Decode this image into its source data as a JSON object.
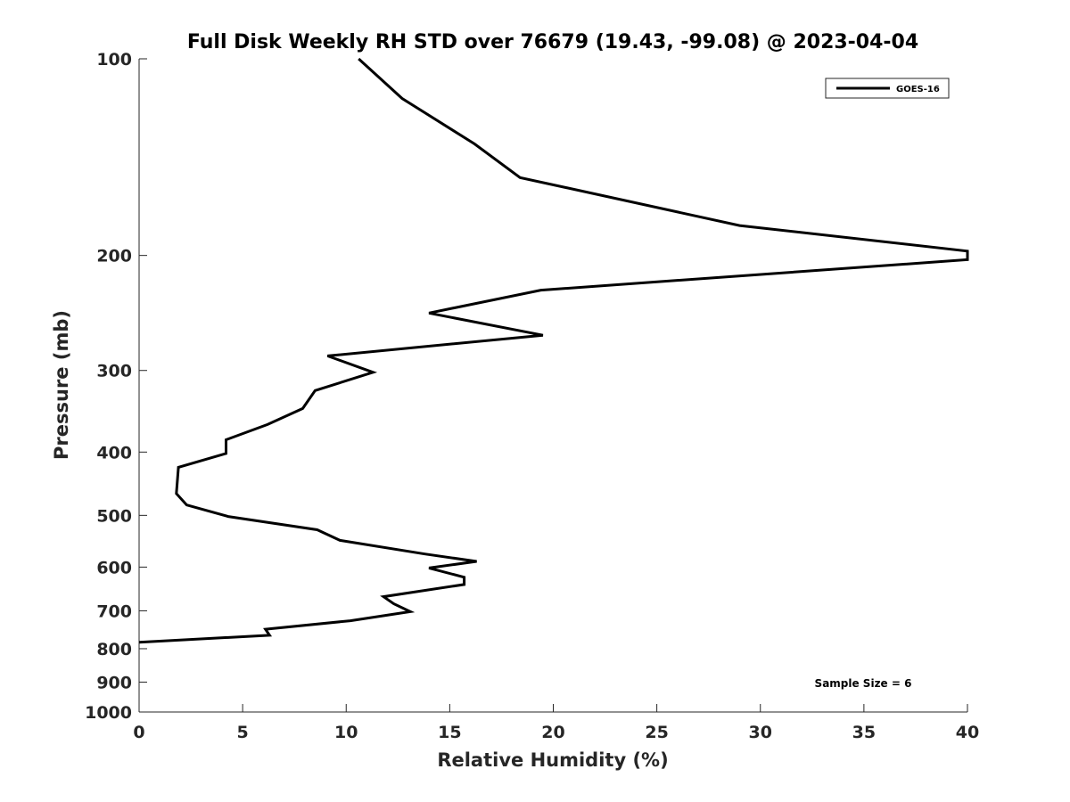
{
  "chart_data": {
    "type": "line",
    "title": "Full Disk Weekly RH STD over 76679 (19.43, -99.08) @ 2023-04-04",
    "xlabel": "Relative Humidity (%)",
    "ylabel": "Pressure (mb)",
    "xlim": [
      0,
      40
    ],
    "ylim": [
      100,
      1000
    ],
    "yscale": "log",
    "yreversed": true,
    "x_ticks": [
      0,
      5,
      10,
      15,
      20,
      25,
      30,
      35,
      40
    ],
    "x_tick_labels": [
      "0",
      "5",
      "10",
      "15",
      "20",
      "25",
      "30",
      "35",
      "40"
    ],
    "y_ticks": [
      100,
      200,
      300,
      400,
      500,
      600,
      700,
      800,
      900,
      1000
    ],
    "y_tick_labels": [
      "100",
      "200",
      "300",
      "400",
      "500",
      "600",
      "700",
      "800",
      "900",
      "1000"
    ],
    "grid": false,
    "legend": {
      "position": "top-right",
      "entries": [
        "GOES-16"
      ]
    },
    "annotation": "Sample Size = 6",
    "series": [
      {
        "name": "GOES-16",
        "color": "#000000",
        "points": [
          [
            10.6,
            100
          ],
          [
            12.7,
            115
          ],
          [
            16.2,
            135
          ],
          [
            18.4,
            152
          ],
          [
            29.0,
            180
          ],
          [
            40.0,
            197
          ],
          [
            40.0,
            203
          ],
          [
            19.4,
            226
          ],
          [
            14.0,
            245
          ],
          [
            19.5,
            265
          ],
          [
            9.1,
            285
          ],
          [
            11.3,
            302
          ],
          [
            8.5,
            322
          ],
          [
            7.9,
            343
          ],
          [
            6.2,
            363
          ],
          [
            4.2,
            383
          ],
          [
            4.2,
            402
          ],
          [
            1.9,
            422
          ],
          [
            1.8,
            463
          ],
          [
            2.3,
            482
          ],
          [
            4.3,
            502
          ],
          [
            8.6,
            526
          ],
          [
            9.7,
            546
          ],
          [
            13.8,
            573
          ],
          [
            16.3,
            588
          ],
          [
            14.0,
            602
          ],
          [
            15.7,
            622
          ],
          [
            15.7,
            638
          ],
          [
            11.8,
            666
          ],
          [
            12.3,
            683
          ],
          [
            13.1,
            702
          ],
          [
            10.2,
            725
          ],
          [
            6.1,
            747
          ],
          [
            6.3,
            763
          ],
          [
            0.0,
            782
          ]
        ]
      }
    ]
  }
}
